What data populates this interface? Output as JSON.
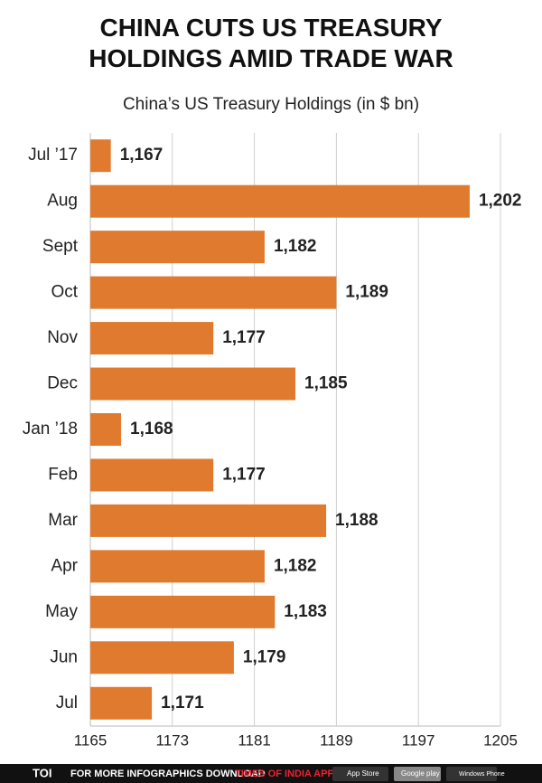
{
  "chart_data": {
    "type": "bar",
    "orientation": "horizontal",
    "title": "CHINA CUTS US TREASURY HOLDINGS AMID TRADE WAR",
    "subtitle": "China’s US Treasury Holdings (in $ bn)",
    "categories": [
      "Jul ’17",
      "Aug",
      "Sept",
      "Oct",
      "Nov",
      "Dec",
      "Jan ’18",
      "Feb",
      "Mar",
      "Apr",
      "May",
      "Jun",
      "Jul"
    ],
    "values": [
      1167,
      1202,
      1182,
      1189,
      1177,
      1185,
      1168,
      1177,
      1188,
      1182,
      1183,
      1179,
      1171
    ],
    "value_labels": [
      "1,167",
      "1,202",
      "1,182",
      "1,189",
      "1,177",
      "1,185",
      "1,168",
      "1,177",
      "1,188",
      "1,182",
      "1,183",
      "1,179",
      "1,171"
    ],
    "color": "#e07a2f",
    "xlim": [
      1165,
      1205
    ],
    "xticks": [
      1165,
      1173,
      1181,
      1189,
      1197,
      1205
    ],
    "grid": true
  },
  "footer": {
    "brand": "TOI",
    "text": "FOR MORE  INFOGRAPHICS DOWNLOAD",
    "app": "TIMES OF INDIA APP",
    "badges": [
      "App Store",
      "Google play",
      "Windows Phone"
    ]
  }
}
